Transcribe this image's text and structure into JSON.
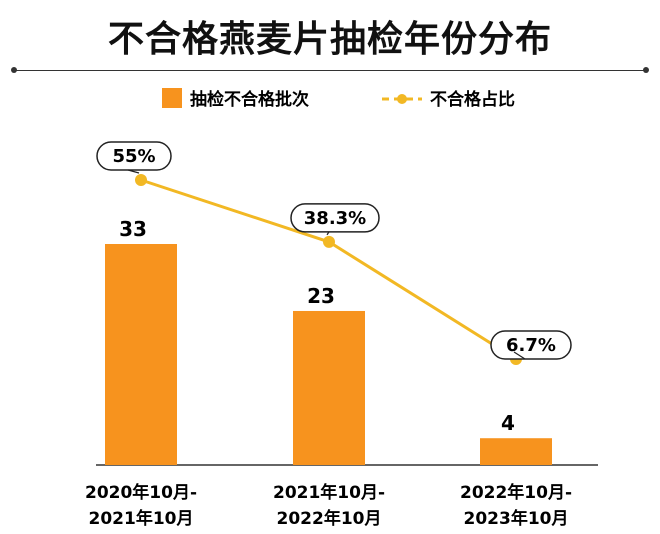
{
  "title": "不合格燕麦片抽检年份分布",
  "chart_data": {
    "type": "bar+line",
    "categories": [
      [
        "2020年10月-",
        "2021年10月"
      ],
      [
        "2021年10月-",
        "2022年10月"
      ],
      [
        "2022年10月-",
        "2023年10月"
      ]
    ],
    "series": [
      {
        "name": "抽检不合格批次",
        "type": "bar",
        "values": [
          33,
          23,
          4
        ],
        "labels": [
          "33",
          "23",
          "4"
        ],
        "color": "#f7931e"
      },
      {
        "name": "不合格占比",
        "type": "line",
        "values": [
          55,
          38.3,
          6.7
        ],
        "labels": [
          "55%",
          "38.3%",
          "6.7%"
        ],
        "color": "#f2b824"
      }
    ],
    "legend_position": "top-center",
    "grid": false,
    "bar_ylim": [
      0,
      45
    ],
    "line_ylim": [
      0,
      70
    ]
  }
}
